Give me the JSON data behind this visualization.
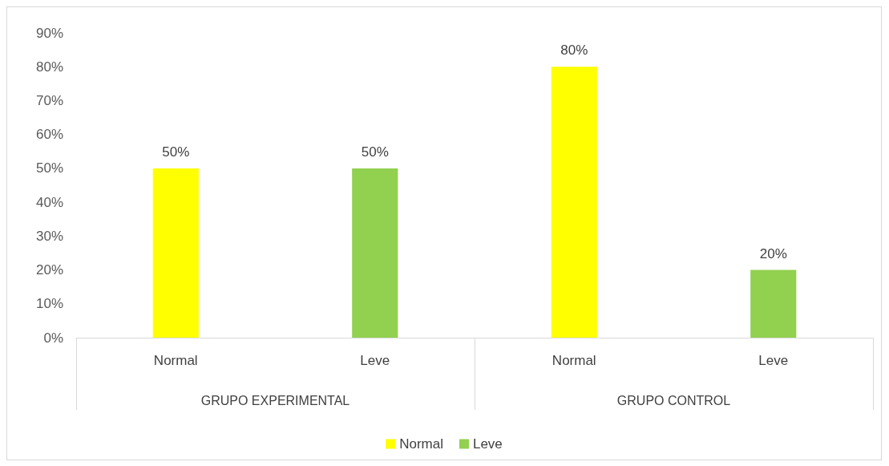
{
  "chart_data": {
    "type": "bar",
    "categories": [
      "Normal",
      "Leve",
      "Normal",
      "Leve"
    ],
    "series": [
      {
        "name": "Normal",
        "color": "#ffff00",
        "values": [
          50,
          null,
          80,
          null
        ],
        "value_labels": [
          "50%",
          null,
          "80%",
          null
        ]
      },
      {
        "name": "Leve",
        "color": "#92d050",
        "values": [
          null,
          50,
          null,
          20
        ],
        "value_labels": [
          null,
          "50%",
          null,
          "20%"
        ]
      }
    ],
    "ylim": [
      0,
      90
    ],
    "yticks": [
      {
        "value": 0,
        "label": "0%"
      },
      {
        "value": 10,
        "label": "10%"
      },
      {
        "value": 20,
        "label": "20%"
      },
      {
        "value": 30,
        "label": "30%"
      },
      {
        "value": 40,
        "label": "40%"
      },
      {
        "value": 50,
        "label": "50%"
      },
      {
        "value": 60,
        "label": "60%"
      },
      {
        "value": 70,
        "label": "70%"
      },
      {
        "value": 80,
        "label": "80%"
      },
      {
        "value": 90,
        "label": "90%"
      }
    ],
    "grid": false,
    "legend": "bottom",
    "annotations": [
      "GRUPO EXPERIMENTAL",
      "GRUPO CONTROL"
    ]
  }
}
